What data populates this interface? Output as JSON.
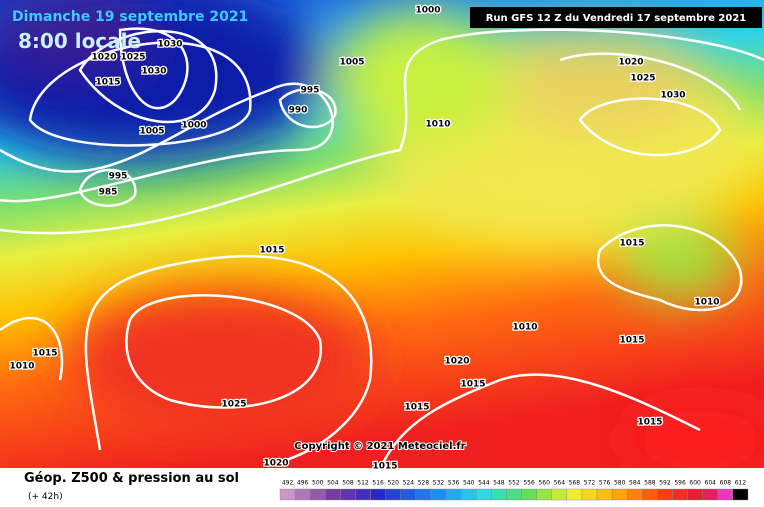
{
  "header": {
    "title": "Dimanche 19 septembre 2021",
    "time": "8:00 locale",
    "run": "Run GFS 12 Z du Vendredi 17 septembre 2021",
    "copyright": "Copyright © 2021 Meteociel.fr"
  },
  "isobar_labels": [
    "1000",
    "1030",
    "1025",
    "1020",
    "1030",
    "1015",
    "1005",
    "995",
    "990",
    "1000",
    "1005",
    "1010",
    "995",
    "985",
    "1020",
    "1025",
    "1030",
    "1015",
    "1015",
    "1010",
    "1010",
    "1015",
    "1015",
    "1010",
    "1020",
    "1015",
    "1025",
    "1015",
    "1015",
    "1020",
    "1015"
  ],
  "legend": {
    "title": "Géop. Z500 & pression au sol",
    "lead": "(+ 42h)",
    "scale": [
      492,
      496,
      500,
      504,
      508,
      512,
      516,
      520,
      524,
      528,
      532,
      536,
      540,
      544,
      548,
      552,
      556,
      560,
      564,
      568,
      572,
      576,
      580,
      584,
      588,
      592,
      596,
      600,
      604,
      608,
      612
    ]
  }
}
